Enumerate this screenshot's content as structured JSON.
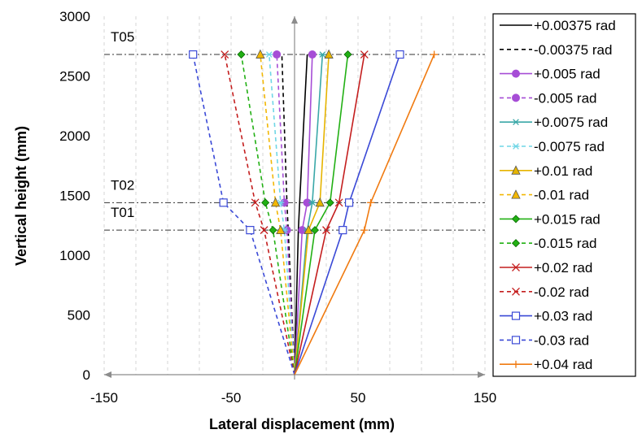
{
  "chart_data": {
    "type": "line",
    "orientation": "profile",
    "title": "",
    "xlabel": "Lateral displacement (mm)",
    "ylabel": "Vertical height (mm)",
    "xlim": [
      -150,
      150
    ],
    "ylim": [
      0,
      3000
    ],
    "xticks": [
      -150,
      -50,
      50,
      150
    ],
    "yticks": [
      0,
      500,
      1000,
      1500,
      2000,
      2500,
      3000
    ],
    "grid": "vertical dashed",
    "legend": "right",
    "heights": [
      0,
      1210,
      1440,
      2680
    ],
    "reference_lines": [
      {
        "label": "T05",
        "y": 2680
      },
      {
        "label": "T02",
        "y": 1440
      },
      {
        "label": "T01",
        "y": 1210
      }
    ],
    "series": [
      {
        "name": "+0.00375 rad",
        "color": "#000000",
        "dash": "solid",
        "marker": "none",
        "x": [
          0,
          3,
          4,
          10
        ]
      },
      {
        "name": "-0.00375 rad",
        "color": "#000000",
        "dash": "dashed",
        "marker": "none",
        "x": [
          0,
          -5,
          -6,
          -10
        ]
      },
      {
        "name": "+0.005 rad",
        "color": "#a64dd6",
        "dash": "solid",
        "marker": "circle",
        "x": [
          0,
          6,
          10,
          14
        ]
      },
      {
        "name": "-0.005 rad",
        "color": "#a64dd6",
        "dash": "dashed",
        "marker": "circle",
        "x": [
          0,
          -6,
          -8,
          -14
        ]
      },
      {
        "name": "+0.0075 rad",
        "color": "#3aa8a8",
        "dash": "solid",
        "marker": "star",
        "x": [
          0,
          10,
          14,
          22
        ]
      },
      {
        "name": "-0.0075 rad",
        "color": "#6fd6e6",
        "dash": "dashed",
        "marker": "star",
        "x": [
          0,
          -8,
          -11,
          -20
        ]
      },
      {
        "name": "+0.01 rad",
        "color": "#e6b400",
        "dash": "solid",
        "marker": "triangle",
        "x": [
          0,
          11,
          20,
          27
        ]
      },
      {
        "name": "-0.01 rad",
        "color": "#f2b705",
        "dash": "dashed",
        "marker": "triangle",
        "x": [
          0,
          -11,
          -15,
          -27
        ]
      },
      {
        "name": "+0.015 rad",
        "color": "#22b014",
        "dash": "solid",
        "marker": "diamond",
        "x": [
          0,
          16,
          28,
          42
        ]
      },
      {
        "name": "-0.015 rad",
        "color": "#22b014",
        "dash": "dashed",
        "marker": "diamond",
        "x": [
          0,
          -17,
          -23,
          -42
        ]
      },
      {
        "name": "+0.02 rad",
        "color": "#c41e1e",
        "dash": "solid",
        "marker": "x",
        "x": [
          0,
          25,
          35,
          55
        ]
      },
      {
        "name": "-0.02 rad",
        "color": "#c41e1e",
        "dash": "dashed",
        "marker": "x",
        "x": [
          0,
          -24,
          -31,
          -55
        ]
      },
      {
        "name": "+0.03 rad",
        "color": "#3a49d6",
        "dash": "solid",
        "marker": "square",
        "x": [
          0,
          38,
          43,
          83
        ]
      },
      {
        "name": "-0.03 rad",
        "color": "#3a49d6",
        "dash": "dashed",
        "marker": "square",
        "x": [
          0,
          -35,
          -56,
          -80
        ]
      },
      {
        "name": "+0.04 rad",
        "color": "#f07a10",
        "dash": "solid",
        "marker": "plus",
        "x": [
          0,
          55,
          60,
          110
        ]
      }
    ]
  }
}
